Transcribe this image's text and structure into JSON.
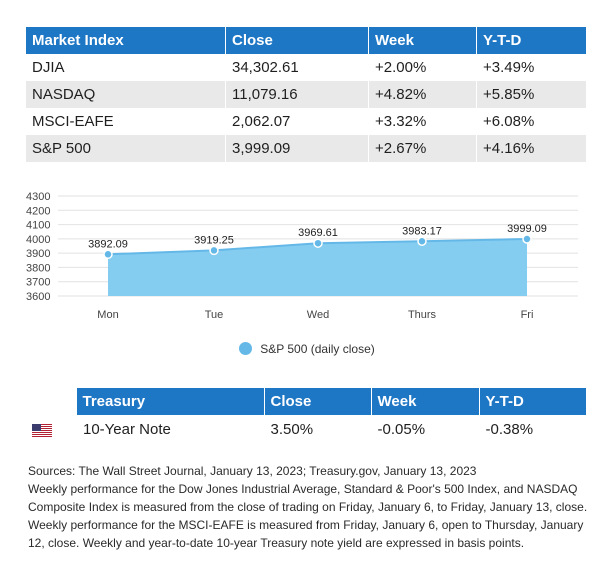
{
  "market_table": {
    "headers": [
      "Market Index",
      "Close",
      "Week",
      "Y-T-D"
    ],
    "rows": [
      [
        "DJIA",
        "34,302.61",
        "+2.00%",
        "+3.49%"
      ],
      [
        "NASDAQ",
        "11,079.16",
        "+4.82%",
        "+5.85%"
      ],
      [
        "MSCI-EAFE",
        "2,062.07",
        "+3.32%",
        "+6.08%"
      ],
      [
        "S&P 500",
        "3,999.09",
        "+2.67%",
        "+4.16%"
      ]
    ]
  },
  "chart_data": {
    "type": "area",
    "categories": [
      "Mon",
      "Tue",
      "Wed",
      "Thurs",
      "Fri"
    ],
    "series": [
      {
        "name": "S&P 500 (daily close)",
        "values": [
          3892.09,
          3919.25,
          3969.61,
          3983.17,
          3999.09
        ]
      }
    ],
    "data_labels": [
      "3892.09",
      "3919.25",
      "3969.61",
      "3983.17",
      "3999.09"
    ],
    "y_ticks": [
      3600,
      3700,
      3800,
      3900,
      4000,
      4100,
      4200,
      4300
    ],
    "ylim": [
      3600,
      4300
    ],
    "grid": true,
    "legend_position": "bottom-center",
    "colors": {
      "fill": "#85cdf0",
      "line": "#64b8e8",
      "point": "#64b8e8"
    }
  },
  "legend": {
    "label": "S&P 500 (daily close)"
  },
  "treasury_table": {
    "headers": [
      "Treasury",
      "Close",
      "Week",
      "Y-T-D"
    ],
    "row": {
      "flag": "us-flag-icon",
      "label": "10-Year Note",
      "close": "3.50%",
      "week": "-0.05%",
      "ytd": "-0.38%"
    }
  },
  "notes": [
    "Sources: The Wall Street Journal, January 13, 2023; Treasury.gov, January 13, 2023",
    "Weekly performance for the Dow Jones Industrial Average, Standard & Poor's 500 Index, and NASDAQ Composite Index is measured from the close of trading on Friday, January 6, to Friday, January 13, close. Weekly performance for the MSCI-EAFE is measured from Friday, January 6, open to Thursday, January 12, close. Weekly and year-to-date 10-year Treasury note yield are expressed in basis points."
  ],
  "colors": {
    "header_bg": "#1e77c5",
    "row_alt_bg": "#e9e9e9"
  }
}
